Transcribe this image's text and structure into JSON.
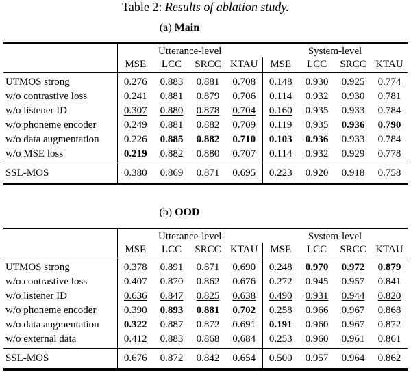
{
  "title": {
    "prefix": "Table 2: ",
    "italic": "Results of ablation study."
  },
  "colors": {
    "background": "#ffffff",
    "text": "#000000",
    "rule": "#000000"
  },
  "style_codes": {
    "b": "bold",
    "u": "underline",
    "n": "normal"
  },
  "tables": [
    {
      "caption": {
        "prefix": "(a) ",
        "name": "Main"
      },
      "group_headers": [
        "Utterance-level",
        "System-level"
      ],
      "columns": [
        "MSE",
        "LCC",
        "SRCC",
        "KTAU",
        "MSE",
        "LCC",
        "SRCC",
        "KTAU"
      ],
      "rows": [
        {
          "label": "UTMOS strong",
          "values": [
            "0.276",
            "0.883",
            "0.881",
            "0.708",
            "0.148",
            "0.930",
            "0.925",
            "0.774"
          ],
          "styles": [
            "n",
            "n",
            "n",
            "n",
            "n",
            "n",
            "n",
            "n"
          ]
        },
        {
          "label": "w/o contrastive loss",
          "values": [
            "0.241",
            "0.881",
            "0.879",
            "0.706",
            "0.114",
            "0.932",
            "0.930",
            "0.781"
          ],
          "styles": [
            "n",
            "n",
            "n",
            "n",
            "n",
            "n",
            "n",
            "n"
          ]
        },
        {
          "label": "w/o listener ID",
          "values": [
            "0.307",
            "0.880",
            "0.878",
            "0.704",
            "0.160",
            "0.935",
            "0.933",
            "0.784"
          ],
          "styles": [
            "u",
            "u",
            "u",
            "u",
            "u",
            "n",
            "n",
            "n"
          ]
        },
        {
          "label": "w/o phoneme encoder",
          "values": [
            "0.249",
            "0.881",
            "0.882",
            "0.709",
            "0.119",
            "0.935",
            "0.936",
            "0.790"
          ],
          "styles": [
            "n",
            "n",
            "n",
            "n",
            "n",
            "n",
            "b",
            "b"
          ]
        },
        {
          "label": "w/o data augmentation",
          "values": [
            "0.226",
            "0.885",
            "0.882",
            "0.710",
            "0.103",
            "0.936",
            "0.933",
            "0.784"
          ],
          "styles": [
            "n",
            "b",
            "b",
            "b",
            "b",
            "b",
            "n",
            "n"
          ]
        },
        {
          "label": "w/o MSE loss",
          "values": [
            "0.219",
            "0.882",
            "0.880",
            "0.707",
            "0.114",
            "0.932",
            "0.929",
            "0.778"
          ],
          "styles": [
            "b",
            "n",
            "n",
            "n",
            "n",
            "n",
            "n",
            "n"
          ]
        }
      ],
      "baseline_rows": [
        {
          "label": "SSL-MOS",
          "values": [
            "0.380",
            "0.869",
            "0.871",
            "0.695",
            "0.223",
            "0.920",
            "0.918",
            "0.758"
          ],
          "styles": [
            "n",
            "n",
            "n",
            "n",
            "n",
            "n",
            "n",
            "n"
          ]
        }
      ]
    },
    {
      "caption": {
        "prefix": "(b) ",
        "name": "OOD"
      },
      "group_headers": [
        "Utterance-level",
        "System-level"
      ],
      "columns": [
        "MSE",
        "LCC",
        "SRCC",
        "KTAU",
        "MSE",
        "LCC",
        "SRCC",
        "KTAU"
      ],
      "rows": [
        {
          "label": "UTMOS strong",
          "values": [
            "0.378",
            "0.891",
            "0.871",
            "0.690",
            "0.248",
            "0.970",
            "0.972",
            "0.879"
          ],
          "styles": [
            "n",
            "n",
            "n",
            "n",
            "n",
            "b",
            "b",
            "b"
          ]
        },
        {
          "label": "w/o contrastive loss",
          "values": [
            "0.407",
            "0.870",
            "0.862",
            "0.676",
            "0.272",
            "0.945",
            "0.957",
            "0.841"
          ],
          "styles": [
            "n",
            "n",
            "n",
            "n",
            "n",
            "n",
            "n",
            "n"
          ]
        },
        {
          "label": "w/o listener ID",
          "values": [
            "0.636",
            "0.847",
            "0.825",
            "0.638",
            "0.490",
            "0.931",
            "0.944",
            "0.820"
          ],
          "styles": [
            "u",
            "u",
            "u",
            "u",
            "u",
            "u",
            "u",
            "u"
          ]
        },
        {
          "label": "w/o phoneme encoder",
          "values": [
            "0.390",
            "0.893",
            "0.881",
            "0.702",
            "0.258",
            "0.966",
            "0.967",
            "0.868"
          ],
          "styles": [
            "n",
            "b",
            "b",
            "b",
            "n",
            "n",
            "n",
            "n"
          ]
        },
        {
          "label": "w/o data augmentation",
          "values": [
            "0.322",
            "0.887",
            "0.872",
            "0.691",
            "0.191",
            "0.960",
            "0.967",
            "0.872"
          ],
          "styles": [
            "b",
            "n",
            "n",
            "n",
            "b",
            "n",
            "n",
            "n"
          ]
        },
        {
          "label": "w/o external data",
          "values": [
            "0.412",
            "0.883",
            "0.868",
            "0.684",
            "0.253",
            "0.960",
            "0.961",
            "0.861"
          ],
          "styles": [
            "n",
            "n",
            "n",
            "n",
            "n",
            "n",
            "n",
            "n"
          ]
        }
      ],
      "baseline_rows": [
        {
          "label": "SSL-MOS",
          "values": [
            "0.676",
            "0.872",
            "0.842",
            "0.654",
            "0.500",
            "0.957",
            "0.964",
            "0.862"
          ],
          "styles": [
            "n",
            "n",
            "n",
            "n",
            "n",
            "n",
            "n",
            "n"
          ]
        }
      ]
    }
  ]
}
